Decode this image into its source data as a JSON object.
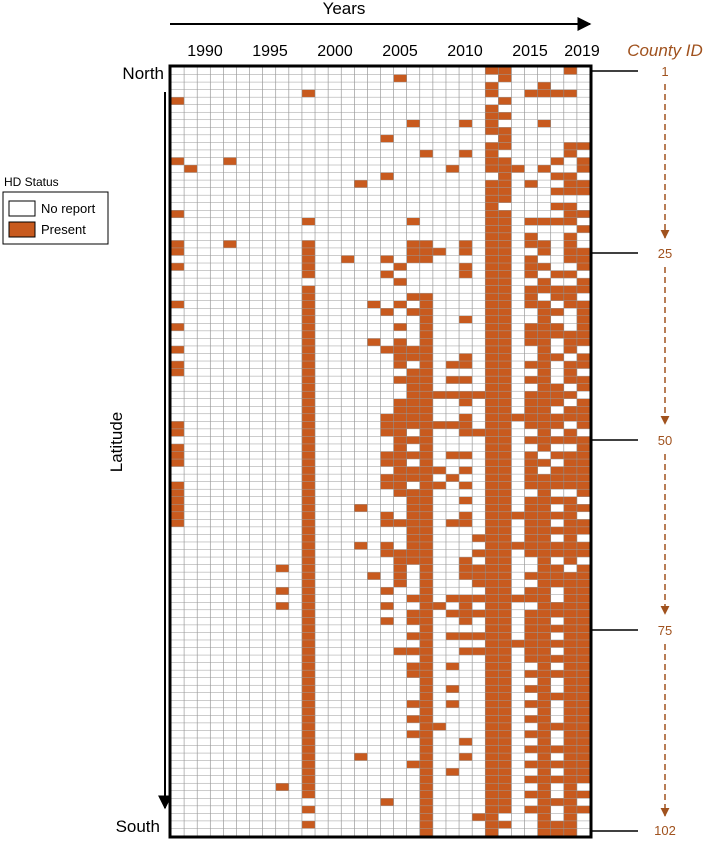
{
  "chart_data": {
    "type": "heatmap",
    "top_label": "Years",
    "north_label": "North",
    "south_label": "South",
    "latitude_label": "Latitude",
    "county_id_title": "County ID",
    "x_tick_labels": [
      "1990",
      "1995",
      "2000",
      "2005",
      "2010",
      "2015",
      "2019"
    ],
    "county_id_labels": [
      "1",
      "25",
      "50",
      "75",
      "102"
    ],
    "legend": {
      "title": "HD Status",
      "entries": [
        {
          "label": "No report",
          "color": "#ffffff"
        },
        {
          "label": "Present",
          "color": "#c85a1e"
        }
      ]
    },
    "years": [
      1988,
      1989,
      1990,
      1991,
      1992,
      1993,
      1994,
      1995,
      1996,
      1997,
      1998,
      1999,
      2000,
      2001,
      2002,
      2003,
      2004,
      2005,
      2006,
      2007,
      2008,
      2009,
      2010,
      2011,
      2012,
      2013,
      2014,
      2015,
      2016,
      2017,
      2018,
      2019
    ],
    "counties": 102,
    "present": {
      "1": [
        2012,
        2013,
        2018
      ],
      "2": [
        2005,
        2013
      ],
      "3": [
        2012,
        2016
      ],
      "4": [
        1998,
        2012,
        2015,
        2016,
        2017,
        2018
      ],
      "5": [
        1988,
        2013
      ],
      "6": [
        2012
      ],
      "7": [
        2012,
        2013
      ],
      "8": [
        2006,
        2010,
        2012,
        2016
      ],
      "9": [
        2012,
        2013
      ],
      "10": [
        2004,
        2013
      ],
      "11": [
        2012,
        2013,
        2018,
        2019
      ],
      "12": [
        2007,
        2010,
        2012,
        2018
      ],
      "13": [
        1988,
        1992,
        2012,
        2013,
        2017,
        2019
      ],
      "14": [
        1989,
        2009,
        2012,
        2013,
        2014,
        2016,
        2019
      ],
      "15": [
        2004,
        2013,
        2017,
        2018
      ],
      "16": [
        2002,
        2012,
        2013,
        2015,
        2018,
        2019
      ],
      "17": [
        2012,
        2013,
        2017,
        2018,
        2019
      ],
      "18": [
        2012,
        2013
      ],
      "19": [
        2012,
        2017,
        2018
      ],
      "20": [
        1988,
        2012,
        2013,
        2018,
        2019
      ],
      "21": [
        1998,
        2006,
        2012,
        2013,
        2015,
        2016,
        2017,
        2018
      ],
      "22": [
        2012,
        2013,
        2019
      ],
      "23": [
        2012,
        2013,
        2015,
        2018
      ],
      "24": [
        1988,
        1992,
        1998,
        2006,
        2007,
        2010,
        2012,
        2013,
        2015,
        2016,
        2018
      ],
      "25": [
        1988,
        1998,
        2006,
        2007,
        2008,
        2010,
        2012,
        2013,
        2016,
        2018,
        2019
      ],
      "26": [
        1998,
        2001,
        2004,
        2006,
        2007,
        2012,
        2013,
        2015,
        2018,
        2019
      ],
      "27": [
        1988,
        1998,
        2005,
        2010,
        2012,
        2013,
        2015,
        2016,
        2019
      ],
      "28": [
        1998,
        2004,
        2010,
        2012,
        2013,
        2015,
        2017,
        2018
      ],
      "29": [
        2005,
        2012,
        2013,
        2016,
        2019
      ],
      "30": [
        1998,
        2012,
        2013,
        2015,
        2016,
        2017,
        2018,
        2019
      ],
      "31": [
        1998,
        2006,
        2007,
        2012,
        2013,
        2015,
        2017,
        2018
      ],
      "32": [
        1988,
        1998,
        2003,
        2005,
        2007,
        2012,
        2013,
        2015,
        2016,
        2018,
        2019
      ],
      "33": [
        1998,
        2004,
        2006,
        2007,
        2012,
        2013,
        2016,
        2017,
        2019
      ],
      "34": [
        1998,
        2007,
        2010,
        2012,
        2013,
        2016,
        2019
      ],
      "35": [
        1988,
        1998,
        2005,
        2007,
        2012,
        2013,
        2015,
        2016,
        2017,
        2019
      ],
      "36": [
        1998,
        2007,
        2012,
        2013,
        2015,
        2016,
        2017,
        2018,
        2019
      ],
      "37": [
        1998,
        2003,
        2005,
        2007,
        2012,
        2013,
        2015,
        2016,
        2018,
        2019
      ],
      "38": [
        1988,
        1998,
        2004,
        2005,
        2006,
        2007,
        2012,
        2013,
        2016,
        2018
      ],
      "39": [
        1998,
        2005,
        2006,
        2007,
        2010,
        2012,
        2013,
        2016,
        2017,
        2019
      ],
      "40": [
        1988,
        1998,
        2005,
        2007,
        2009,
        2010,
        2012,
        2013,
        2015,
        2016,
        2018,
        2019
      ],
      "41": [
        1988,
        1998,
        2006,
        2007,
        2012,
        2013,
        2016,
        2018
      ],
      "42": [
        1998,
        2005,
        2006,
        2007,
        2009,
        2010,
        2012,
        2013,
        2015,
        2016,
        2018,
        2019
      ],
      "43": [
        1998,
        2006,
        2007,
        2012,
        2013,
        2016,
        2017,
        2019
      ],
      "44": [
        1998,
        2006,
        2007,
        2008,
        2009,
        2010,
        2011,
        2012,
        2013,
        2015,
        2016,
        2017,
        2018
      ],
      "45": [
        1998,
        2005,
        2006,
        2007,
        2010,
        2012,
        2013,
        2015,
        2016,
        2017,
        2019
      ],
      "46": [
        1998,
        2005,
        2006,
        2007,
        2012,
        2013,
        2015,
        2016,
        2018,
        2019
      ],
      "47": [
        1998,
        2004,
        2005,
        2006,
        2007,
        2010,
        2012,
        2013,
        2014,
        2015,
        2016,
        2017,
        2018,
        2019
      ],
      "48": [
        1988,
        1998,
        2004,
        2005,
        2006,
        2007,
        2008,
        2009,
        2010,
        2012,
        2013,
        2015,
        2016,
        2017,
        2019
      ],
      "49": [
        1988,
        1998,
        2004,
        2005,
        2007,
        2010,
        2011,
        2012,
        2013,
        2016,
        2018
      ],
      "50": [
        1998,
        2005,
        2006,
        2007,
        2012,
        2013,
        2015,
        2016,
        2017,
        2018,
        2019
      ],
      "51": [
        1988,
        1998,
        2005,
        2007,
        2012,
        2013,
        2016,
        2019
      ],
      "52": [
        1988,
        1998,
        2004,
        2005,
        2006,
        2007,
        2009,
        2010,
        2012,
        2013,
        2015,
        2017,
        2018,
        2019
      ],
      "53": [
        1988,
        1998,
        2004,
        2005,
        2007,
        2012,
        2013,
        2015,
        2016,
        2018,
        2019
      ],
      "54": [
        1998,
        2005,
        2006,
        2007,
        2008,
        2010,
        2012,
        2013,
        2015,
        2017,
        2018,
        2019
      ],
      "55": [
        1998,
        2004,
        2005,
        2006,
        2007,
        2009,
        2012,
        2013,
        2015,
        2016,
        2017,
        2018,
        2019
      ],
      "56": [
        1988,
        1998,
        2004,
        2005,
        2007,
        2008,
        2010,
        2012,
        2013,
        2015,
        2016,
        2017,
        2018,
        2019
      ],
      "57": [
        1988,
        1998,
        2005,
        2006,
        2007,
        2012,
        2013,
        2016,
        2019
      ],
      "58": [
        1988,
        1998,
        2006,
        2007,
        2010,
        2012,
        2013,
        2015,
        2016,
        2017,
        2018
      ],
      "59": [
        1988,
        1998,
        2002,
        2006,
        2007,
        2012,
        2013,
        2015,
        2016,
        2018,
        2019
      ],
      "60": [
        1988,
        1998,
        2004,
        2006,
        2007,
        2010,
        2012,
        2013,
        2014,
        2015,
        2016,
        2017,
        2018
      ],
      "61": [
        1988,
        1998,
        2004,
        2005,
        2006,
        2007,
        2009,
        2010,
        2012,
        2013,
        2015,
        2016,
        2018,
        2019
      ],
      "62": [
        1998,
        2006,
        2007,
        2012,
        2013,
        2015,
        2016,
        2017,
        2018,
        2019
      ],
      "63": [
        1998,
        2006,
        2007,
        2011,
        2012,
        2013,
        2015,
        2016,
        2018
      ],
      "64": [
        1998,
        2002,
        2004,
        2006,
        2007,
        2012,
        2013,
        2014,
        2015,
        2016,
        2017,
        2018,
        2019
      ],
      "65": [
        1998,
        2004,
        2005,
        2006,
        2007,
        2011,
        2012,
        2013,
        2015,
        2016,
        2017,
        2018,
        2019
      ],
      "66": [
        1998,
        2005,
        2006,
        2007,
        2010,
        2012,
        2013,
        2016,
        2018
      ],
      "67": [
        1996,
        1998,
        2005,
        2007,
        2010,
        2011,
        2012,
        2013,
        2016,
        2017,
        2019
      ],
      "68": [
        1998,
        2003,
        2005,
        2007,
        2010,
        2011,
        2012,
        2013,
        2015,
        2016,
        2017,
        2018,
        2019
      ],
      "69": [
        1998,
        2005,
        2007,
        2011,
        2012,
        2013,
        2016,
        2017,
        2018,
        2019
      ],
      "70": [
        1996,
        1998,
        2004,
        2007,
        2012,
        2013,
        2015,
        2016,
        2018,
        2019
      ],
      "71": [
        1998,
        2006,
        2007,
        2009,
        2010,
        2011,
        2012,
        2013,
        2014,
        2015,
        2016,
        2018,
        2019
      ],
      "72": [
        1996,
        1998,
        2004,
        2007,
        2008,
        2010,
        2012,
        2013,
        2016,
        2017,
        2018,
        2019
      ],
      "73": [
        1998,
        2006,
        2007,
        2009,
        2010,
        2011,
        2012,
        2013,
        2015,
        2016,
        2017,
        2018,
        2019
      ],
      "74": [
        1998,
        2004,
        2006,
        2007,
        2010,
        2012,
        2013,
        2015,
        2016,
        2018,
        2019
      ],
      "75": [
        1998,
        2007,
        2012,
        2013,
        2015,
        2016,
        2017,
        2018,
        2019
      ],
      "76": [
        1998,
        2006,
        2007,
        2009,
        2010,
        2011,
        2012,
        2013,
        2015,
        2016,
        2018,
        2019
      ],
      "77": [
        1998,
        2007,
        2012,
        2013,
        2014,
        2015,
        2016,
        2017,
        2018,
        2019
      ],
      "78": [
        1998,
        2005,
        2006,
        2007,
        2010,
        2011,
        2012,
        2013,
        2015,
        2016,
        2018,
        2019
      ],
      "79": [
        1998,
        2007,
        2012,
        2013,
        2015,
        2016,
        2017,
        2018,
        2019
      ],
      "80": [
        1998,
        2006,
        2007,
        2009,
        2012,
        2013,
        2016,
        2018,
        2019
      ],
      "81": [
        1998,
        2006,
        2007,
        2012,
        2013,
        2015,
        2016,
        2017,
        2018,
        2019
      ],
      "82": [
        1998,
        2007,
        2012,
        2013,
        2016,
        2018,
        2019
      ],
      "83": [
        1998,
        2007,
        2009,
        2012,
        2013,
        2015,
        2016,
        2018,
        2019
      ],
      "84": [
        1998,
        2007,
        2012,
        2013,
        2016,
        2017,
        2018,
        2019
      ],
      "85": [
        1998,
        2006,
        2007,
        2009,
        2012,
        2013,
        2015,
        2016,
        2018,
        2019
      ],
      "86": [
        1998,
        2007,
        2012,
        2013,
        2016,
        2018,
        2019
      ],
      "87": [
        1998,
        2006,
        2007,
        2012,
        2013,
        2015,
        2016,
        2018,
        2019
      ],
      "88": [
        1998,
        2007,
        2008,
        2012,
        2013,
        2016,
        2017,
        2018,
        2019
      ],
      "89": [
        1998,
        2006,
        2007,
        2012,
        2013,
        2015,
        2016,
        2018,
        2019
      ],
      "90": [
        1998,
        2007,
        2010,
        2012,
        2013,
        2016,
        2018,
        2019
      ],
      "91": [
        1998,
        2007,
        2012,
        2013,
        2015,
        2016,
        2017,
        2018,
        2019
      ],
      "92": [
        1998,
        2002,
        2007,
        2010,
        2012,
        2013,
        2016,
        2018,
        2019
      ],
      "93": [
        1998,
        2006,
        2007,
        2012,
        2013,
        2015,
        2016,
        2017,
        2018,
        2019
      ],
      "94": [
        1998,
        2007,
        2009,
        2012,
        2013,
        2016,
        2018,
        2019
      ],
      "95": [
        1998,
        2007,
        2012,
        2013,
        2015,
        2016,
        2017,
        2018,
        2019
      ],
      "96": [
        1996,
        1998,
        2007,
        2012,
        2013,
        2016,
        2018
      ],
      "97": [
        1998,
        2007,
        2012,
        2013,
        2015,
        2016,
        2018,
        2019
      ],
      "98": [
        2004,
        2007,
        2012,
        2013,
        2016,
        2017,
        2018
      ],
      "99": [
        1998,
        2007,
        2012,
        2013,
        2015,
        2016,
        2018,
        2019
      ],
      "100": [
        2007,
        2011,
        2012,
        2016,
        2018
      ],
      "101": [
        1998,
        2007,
        2012,
        2013,
        2016,
        2017,
        2018
      ],
      "102": [
        2007,
        2012,
        2016,
        2017,
        2018
      ]
    }
  }
}
